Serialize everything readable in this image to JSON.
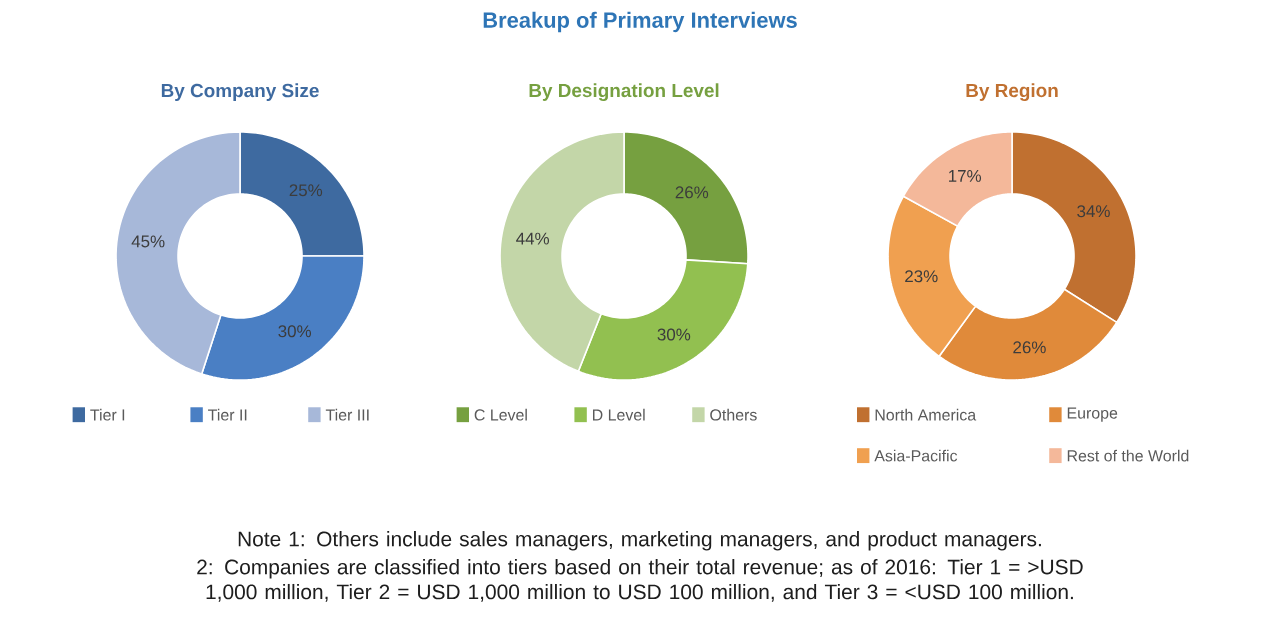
{
  "chart_data": [
    {
      "type": "donut",
      "title": "By Company Size",
      "categories": [
        "Tier I",
        "Tier II",
        "Tier III"
      ],
      "values": [
        25,
        30,
        45
      ],
      "value_labels": [
        "25%",
        "30%",
        "45%"
      ],
      "colors": [
        "#3e6aa0",
        "#4a7fc4",
        "#a7b8d9"
      ],
      "legend": "bottom"
    },
    {
      "type": "donut",
      "title": "By Designation Level",
      "categories": [
        "C Level",
        "D Level",
        "Others"
      ],
      "values": [
        26,
        30,
        44
      ],
      "value_labels": [
        "26%",
        "30%",
        "44%"
      ],
      "colors": [
        "#76a040",
        "#92c050",
        "#c3d6a8"
      ],
      "legend": "bottom"
    },
    {
      "type": "donut",
      "title": "By Region",
      "categories": [
        "North America",
        "Europe",
        "Asia-Pacific",
        "Rest of the World"
      ],
      "values": [
        34,
        26,
        23,
        17
      ],
      "value_labels": [
        "34%",
        "26%",
        "23%",
        "17%"
      ],
      "colors": [
        "#c07030",
        "#e08a3a",
        "#f0a050",
        "#f4b89a"
      ],
      "legend": "bottom"
    },
    {
      "type": "other",
      "title": "Breakup of Primary Interviews",
      "annotations": [
        "Note 1: Others include sales managers, marketing managers, and product managers.",
        "2: Companies are classified into tiers based on their total revenue; as of 2016: Tier 1 = >USD 1,000 million, Tier 2 = USD 1,000 million to USD 100 million, and Tier 3 = <USD 100 million."
      ]
    }
  ]
}
